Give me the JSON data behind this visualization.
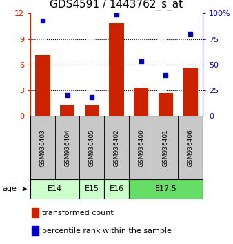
{
  "title": "GDS4591 / 1443762_s_at",
  "samples": [
    "GSM936403",
    "GSM936404",
    "GSM936405",
    "GSM936402",
    "GSM936400",
    "GSM936401",
    "GSM936406"
  ],
  "transformed_counts": [
    7.1,
    1.3,
    1.3,
    10.8,
    3.3,
    2.7,
    5.6
  ],
  "percentile_ranks": [
    93,
    20,
    18,
    99,
    53,
    40,
    80
  ],
  "age_group_data": [
    {
      "label": "E14",
      "start": 0,
      "end": 1,
      "color": "#ccffcc"
    },
    {
      "label": "E15",
      "start": 2,
      "end": 2,
      "color": "#ccffcc"
    },
    {
      "label": "E16",
      "start": 3,
      "end": 3,
      "color": "#ccffcc"
    },
    {
      "label": "E17.5",
      "start": 4,
      "end": 6,
      "color": "#66dd66"
    }
  ],
  "bar_color": "#cc2200",
  "dot_color": "#0000cc",
  "ylim_left": [
    0,
    12
  ],
  "ylim_right": [
    0,
    100
  ],
  "yticks_left": [
    0,
    3,
    6,
    9,
    12
  ],
  "yticks_right": [
    0,
    25,
    50,
    75,
    100
  ],
  "sample_bg_color": "#c8c8c8",
  "title_fontsize": 11,
  "tick_fontsize": 8,
  "sample_fontsize": 6.5,
  "age_fontsize": 8,
  "legend_fontsize": 8
}
